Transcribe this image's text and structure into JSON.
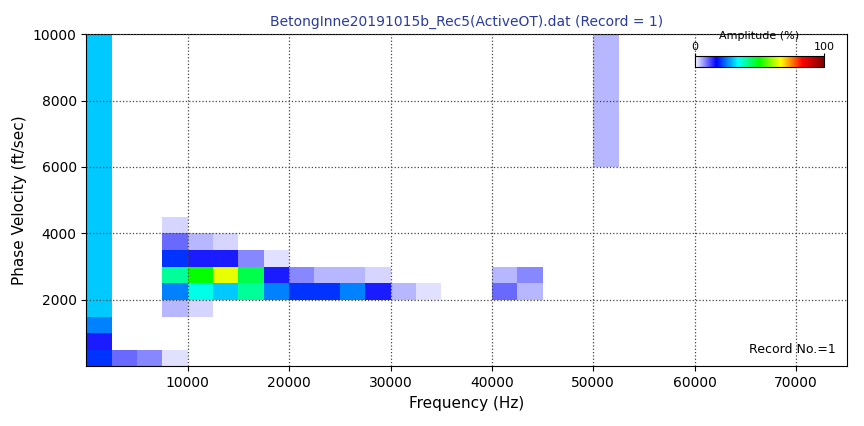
{
  "chart_data": {
    "type": "heatmap",
    "title": "BetongInne20191015b_Rec5(ActiveOT).dat (Record = 1)",
    "x_label": "Frequency (Hz)",
    "y_label": "Phase Velocity (ft/sec)",
    "annotation": "Record No.=1",
    "x_bins": [
      0,
      2500,
      5000,
      7500,
      10000,
      12500,
      15000,
      17500,
      20000,
      22500,
      25000,
      27500,
      30000,
      32500,
      35000,
      37500,
      40000,
      42500,
      45000,
      47500,
      50000,
      52500,
      55000,
      57500,
      60000,
      62500,
      65000,
      67500,
      70000,
      72500,
      75000
    ],
    "y_bins": [
      0,
      500,
      1000,
      1500,
      2000,
      2500,
      3000,
      3500,
      4000,
      4500,
      5000,
      5500,
      6000,
      6500,
      7000,
      7500,
      8000,
      8500,
      9000,
      9500,
      10000
    ],
    "cells": [
      [
        20,
        10,
        8,
        2,
        0,
        0,
        0,
        0,
        0,
        0,
        0,
        0,
        0,
        0,
        0,
        0,
        0,
        0,
        0,
        0,
        0,
        0,
        0,
        0,
        0,
        0,
        0,
        0,
        0,
        0
      ],
      [
        15,
        0,
        0,
        0,
        0,
        0,
        0,
        0,
        0,
        0,
        0,
        0,
        0,
        0,
        0,
        0,
        0,
        0,
        0,
        0,
        0,
        0,
        0,
        0,
        0,
        0,
        0,
        0,
        0,
        0
      ],
      [
        25,
        0,
        0,
        0,
        0,
        0,
        0,
        0,
        0,
        0,
        0,
        0,
        0,
        0,
        0,
        0,
        0,
        0,
        0,
        0,
        0,
        0,
        0,
        0,
        0,
        0,
        0,
        0,
        0,
        0
      ],
      [
        30,
        0,
        0,
        5,
        3,
        0,
        0,
        0,
        0,
        0,
        0,
        0,
        0,
        0,
        0,
        0,
        0,
        0,
        0,
        0,
        0,
        0,
        0,
        0,
        0,
        0,
        0,
        0,
        0,
        0
      ],
      [
        30,
        0,
        0,
        25,
        35,
        30,
        40,
        25,
        20,
        20,
        25,
        15,
        5,
        2,
        0,
        0,
        10,
        5,
        0,
        0,
        0,
        0,
        0,
        0,
        0,
        0,
        0,
        0,
        0,
        0
      ],
      [
        30,
        0,
        0,
        40,
        50,
        65,
        45,
        15,
        8,
        5,
        5,
        3,
        0,
        0,
        0,
        0,
        5,
        8,
        0,
        0,
        0,
        0,
        0,
        0,
        0,
        0,
        0,
        0,
        0,
        0
      ],
      [
        30,
        0,
        0,
        20,
        15,
        15,
        8,
        2,
        0,
        0,
        0,
        0,
        0,
        0,
        0,
        0,
        0,
        0,
        0,
        0,
        0,
        0,
        0,
        0,
        0,
        0,
        0,
        0,
        0,
        0
      ],
      [
        30,
        0,
        0,
        10,
        5,
        3,
        0,
        0,
        0,
        0,
        0,
        0,
        0,
        0,
        0,
        0,
        0,
        0,
        0,
        0,
        0,
        0,
        0,
        0,
        0,
        0,
        0,
        0,
        0,
        0
      ],
      [
        30,
        0,
        0,
        3,
        0,
        0,
        0,
        0,
        0,
        0,
        0,
        0,
        0,
        0,
        0,
        0,
        0,
        0,
        0,
        0,
        0,
        0,
        0,
        0,
        0,
        0,
        0,
        0,
        0,
        0
      ],
      [
        30,
        0,
        0,
        0,
        0,
        0,
        0,
        0,
        0,
        0,
        0,
        0,
        0,
        0,
        0,
        0,
        0,
        0,
        0,
        0,
        0,
        0,
        0,
        0,
        0,
        0,
        0,
        0,
        0,
        0
      ],
      [
        30,
        0,
        0,
        0,
        0,
        0,
        0,
        0,
        0,
        0,
        0,
        0,
        0,
        0,
        0,
        0,
        0,
        0,
        0,
        0,
        0,
        0,
        0,
        0,
        0,
        0,
        0,
        0,
        0,
        0
      ],
      [
        30,
        0,
        0,
        0,
        0,
        0,
        0,
        0,
        0,
        0,
        0,
        0,
        0,
        0,
        0,
        0,
        0,
        0,
        0,
        0,
        0,
        0,
        0,
        0,
        0,
        0,
        0,
        0,
        0,
        0
      ],
      [
        30,
        0,
        0,
        0,
        0,
        0,
        0,
        0,
        0,
        0,
        0,
        0,
        0,
        0,
        0,
        0,
        0,
        0,
        0,
        0,
        5,
        0,
        0,
        0,
        0,
        0,
        0,
        0,
        0,
        0
      ],
      [
        30,
        0,
        0,
        0,
        0,
        0,
        0,
        0,
        0,
        0,
        0,
        0,
        0,
        0,
        0,
        0,
        0,
        0,
        0,
        0,
        5,
        0,
        0,
        0,
        0,
        0,
        0,
        0,
        0,
        0
      ],
      [
        30,
        0,
        0,
        0,
        0,
        0,
        0,
        0,
        0,
        0,
        0,
        0,
        0,
        0,
        0,
        0,
        0,
        0,
        0,
        0,
        5,
        0,
        0,
        0,
        0,
        0,
        0,
        0,
        0,
        0
      ],
      [
        30,
        0,
        0,
        0,
        0,
        0,
        0,
        0,
        0,
        0,
        0,
        0,
        0,
        0,
        0,
        0,
        0,
        0,
        0,
        0,
        5,
        0,
        0,
        0,
        0,
        0,
        0,
        0,
        0,
        0
      ],
      [
        30,
        0,
        0,
        0,
        0,
        0,
        0,
        0,
        0,
        0,
        0,
        0,
        0,
        0,
        0,
        0,
        0,
        0,
        0,
        0,
        5,
        0,
        0,
        0,
        0,
        0,
        0,
        0,
        0,
        0
      ],
      [
        30,
        0,
        0,
        0,
        0,
        0,
        0,
        0,
        0,
        0,
        0,
        0,
        0,
        0,
        0,
        0,
        0,
        0,
        0,
        0,
        5,
        0,
        0,
        0,
        0,
        0,
        0,
        0,
        0,
        0
      ],
      [
        30,
        0,
        0,
        0,
        0,
        0,
        0,
        0,
        0,
        0,
        0,
        0,
        0,
        0,
        0,
        0,
        0,
        0,
        0,
        0,
        5,
        0,
        0,
        0,
        0,
        0,
        0,
        0,
        0,
        0
      ],
      [
        30,
        0,
        0,
        0,
        0,
        0,
        0,
        0,
        0,
        0,
        0,
        0,
        0,
        0,
        0,
        0,
        0,
        0,
        0,
        0,
        5,
        0,
        0,
        0,
        0,
        0,
        0,
        0,
        0,
        0
      ]
    ],
    "xlim": [
      0,
      75000
    ],
    "ylim": [
      0,
      10000
    ],
    "xticks": [
      10000,
      20000,
      30000,
      40000,
      50000,
      60000,
      70000
    ],
    "yticks": [
      2000,
      4000,
      6000,
      8000,
      10000
    ],
    "grid": true,
    "colorbar": {
      "label": "Amplitude (%)",
      "range": [
        0,
        100
      ],
      "ticks": [
        0,
        100
      ]
    }
  }
}
